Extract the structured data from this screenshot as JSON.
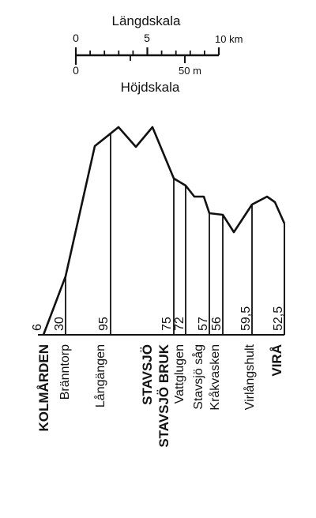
{
  "scales": {
    "length": {
      "title": "Längdskala",
      "ticks": [
        "0",
        "5",
        "10 km"
      ]
    },
    "height": {
      "title": "Höjdskala",
      "ticks": [
        "0",
        "50 m"
      ]
    }
  },
  "stations": [
    {
      "id": "kolmarden",
      "name": "KOLMÅRDEN",
      "bold": true,
      "elevation": "6"
    },
    {
      "id": "branntorp",
      "name": "Bränntorp",
      "bold": false,
      "elevation": "30"
    },
    {
      "id": "langangen",
      "name": "Långängen",
      "bold": false,
      "elevation": "95"
    },
    {
      "id": "stavsjo",
      "name": "STAVSJÖ",
      "bold": true,
      "elevation": ""
    },
    {
      "id": "stavsjobruk",
      "name": "STAVSJÖ BRUK",
      "bold": true,
      "elevation": "75"
    },
    {
      "id": "vattglugen",
      "name": "Vattglugen",
      "bold": false,
      "elevation": "72"
    },
    {
      "id": "stavsjosag",
      "name": "Stavsjö såg",
      "bold": false,
      "elevation": "57"
    },
    {
      "id": "krakvasken",
      "name": "Kråkvasken",
      "bold": false,
      "elevation": "56"
    },
    {
      "id": "virlangshult",
      "name": "Virlångshult",
      "bold": false,
      "elevation": "59,5"
    },
    {
      "id": "vira",
      "name": "VIRÅ",
      "bold": true,
      "elevation": "52,5"
    }
  ]
}
